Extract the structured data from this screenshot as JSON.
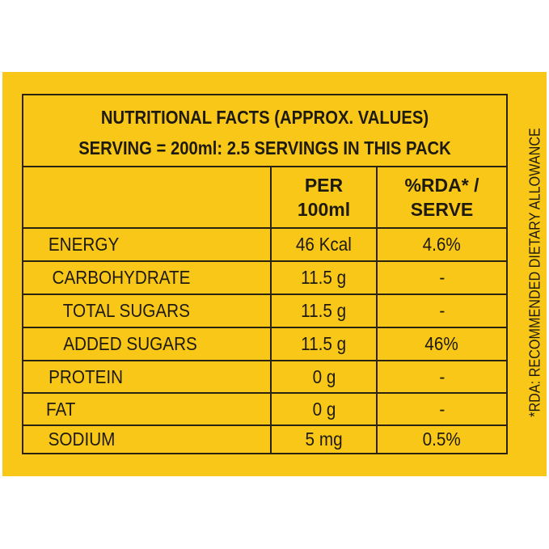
{
  "title": {
    "line1": "NUTRITIONAL FACTS  (APPROX. VALUES)",
    "line2": "SERVING = 200ml: 2.5 SERVINGS IN THIS PACK"
  },
  "columns": {
    "per_100ml_line1": "PER",
    "per_100ml_line2": "100ml",
    "rda_line1": "%RDA* /",
    "rda_line2": "SERVE"
  },
  "rows": [
    {
      "nutrient": "ENERGY",
      "per_100ml": "46 Kcal",
      "rda": "4.6%"
    },
    {
      "nutrient": "CARBOHYDRATE",
      "per_100ml": "11.5 g",
      "rda": "-"
    },
    {
      "nutrient": "TOTAL SUGARS",
      "per_100ml": "11.5 g",
      "rda": "-"
    },
    {
      "nutrient": "ADDED SUGARS",
      "per_100ml": "11.5 g",
      "rda": "46%"
    },
    {
      "nutrient": "PROTEIN",
      "per_100ml": "0 g",
      "rda": "-"
    },
    {
      "nutrient": "FAT",
      "per_100ml": "0 g",
      "rda": "-"
    },
    {
      "nutrient": "SODIUM",
      "per_100ml": "5 mg",
      "rda": "0.5%"
    }
  ],
  "footnote": "*RDA: RECOMMENDED DIETARY ALLOWANCE",
  "colors": {
    "panel": "#f8c718",
    "text": "#1e1a0e",
    "lines": "#2a2310"
  }
}
